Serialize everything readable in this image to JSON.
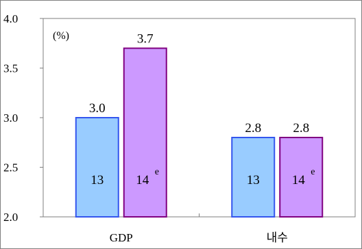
{
  "chart_data": {
    "type": "bar",
    "unit_label": "(%)",
    "ylim": [
      2.0,
      4.0
    ],
    "yticks": [
      "2.0",
      "2.5",
      "3.0",
      "3.5",
      "4.0"
    ],
    "categories": [
      "GDP",
      "내수"
    ],
    "series": [
      {
        "color": "#99ccff",
        "border": "#3355ee",
        "values": [
          3.0,
          2.8
        ],
        "value_labels": [
          "3.0",
          "2.8"
        ],
        "bar_labels": [
          "13",
          "13"
        ],
        "superscripts": [
          "",
          ""
        ]
      },
      {
        "color": "#cc99ff",
        "border": "#800080",
        "values": [
          3.7,
          2.8
        ],
        "value_labels": [
          "3.7",
          "2.8"
        ],
        "bar_labels": [
          "14",
          "14"
        ],
        "superscripts": [
          "e",
          "e"
        ]
      }
    ],
    "grid": false,
    "legend": "none"
  }
}
